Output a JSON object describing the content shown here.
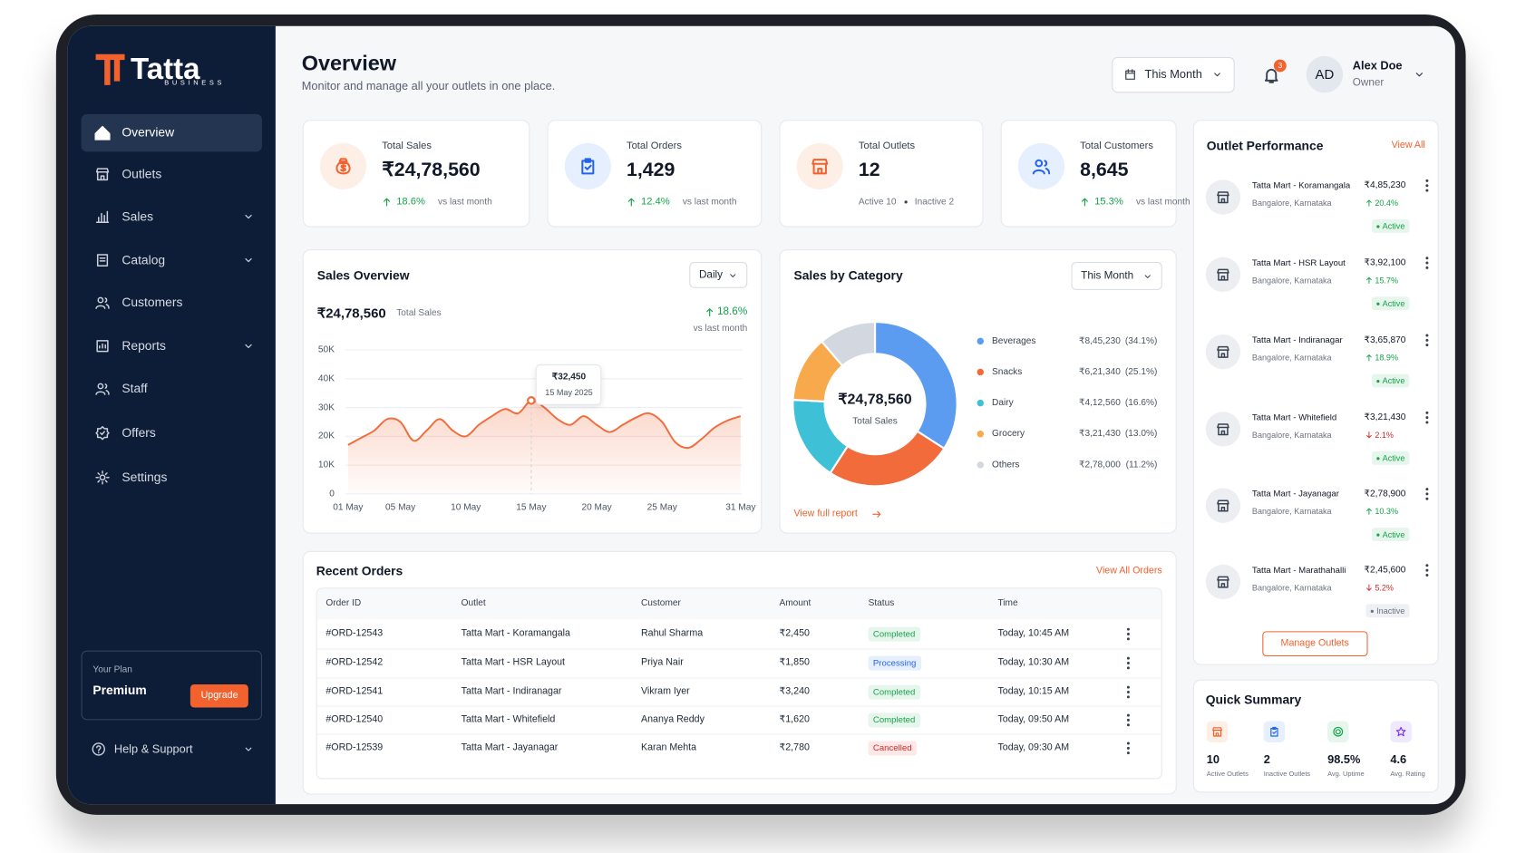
{
  "brand": {
    "name": "Tatta",
    "tagline": "BUSINESS"
  },
  "nav": {
    "items": [
      {
        "label": "Overview",
        "active": true
      },
      {
        "label": "Outlets",
        "icon": "store"
      },
      {
        "label": "Sales",
        "icon": "chart",
        "expandable": true
      },
      {
        "label": "Catalog",
        "icon": "book",
        "expandable": true
      },
      {
        "label": "Customers",
        "icon": "users"
      },
      {
        "label": "Reports",
        "icon": "report",
        "expandable": true
      },
      {
        "label": "Staff",
        "icon": "users"
      },
      {
        "label": "Offers",
        "icon": "tag"
      },
      {
        "label": "Settings",
        "icon": "gear"
      }
    ]
  },
  "plan": {
    "label": "Your Plan",
    "name": "Premium",
    "action": "Upgrade"
  },
  "help": "Help & Support",
  "header": {
    "title": "Overview",
    "subtitle": "Monitor and manage all your outlets in one place.",
    "period": "This Month",
    "notifications": 3,
    "user": {
      "initials": "AD",
      "name": "Alex Doe",
      "role": "Owner"
    }
  },
  "kpis": [
    {
      "label": "Total Sales",
      "value": "₹24,78,560",
      "change": "18.6%",
      "trend": "up",
      "note": "vs last month",
      "tone": "orange",
      "icon": "bag"
    },
    {
      "label": "Total Orders",
      "value": "1,429",
      "change": "12.4%",
      "trend": "up",
      "note": "vs last month",
      "tone": "blue",
      "icon": "clip"
    },
    {
      "label": "Total Outlets",
      "value": 12,
      "details": [
        "Active 10",
        "Inactive 2"
      ],
      "tone": "orange",
      "icon": "store"
    },
    {
      "label": "Total Customers",
      "value": "8,645",
      "change": "15.3%",
      "trend": "up",
      "note": "vs last month",
      "tone": "blue",
      "icon": "users"
    }
  ],
  "sales_overview": {
    "title": "Sales Overview",
    "period": "Daily",
    "total": "₹24,78,560",
    "total_label": "Total Sales",
    "change": "18.6%",
    "trend": "up",
    "change_note": "vs last month"
  },
  "sales_by_category": {
    "title": "Sales by Category",
    "period": "This Month",
    "link": "View full report"
  },
  "chart_data": [
    {
      "type": "line",
      "color": "#f26b3a",
      "x": [
        1,
        2,
        3,
        4,
        5,
        6,
        7,
        8,
        9,
        10,
        11,
        12,
        13,
        14,
        15,
        16,
        17,
        18,
        19,
        20,
        21,
        22,
        23,
        24,
        25,
        26,
        27,
        28,
        29,
        30,
        31
      ],
      "values": [
        17000,
        19500,
        22000,
        26000,
        25000,
        18500,
        22000,
        26000,
        22000,
        20000,
        24000,
        27000,
        29500,
        28000,
        32450,
        30000,
        26000,
        24000,
        27000,
        24000,
        21500,
        24000,
        26500,
        28000,
        25000,
        18000,
        16000,
        19000,
        23000,
        25500,
        27000
      ],
      "xlim": [
        1,
        31
      ],
      "xticks": [
        {
          "value": 1,
          "label": "01 May"
        },
        {
          "value": 5,
          "label": "05 May"
        },
        {
          "value": 10,
          "label": "10 May"
        },
        {
          "value": 15,
          "label": "15 May"
        },
        {
          "value": 20,
          "label": "20 May"
        },
        {
          "value": 25,
          "label": "25 May"
        },
        {
          "value": 31,
          "label": "31 May"
        }
      ],
      "ylim": [
        0,
        50000
      ],
      "yticks": [
        0,
        {
          "value": 10000,
          "label": "10K"
        },
        {
          "value": 20000,
          "label": "20K"
        },
        {
          "value": 30000,
          "label": "30K"
        },
        {
          "value": 40000,
          "label": "40K"
        },
        {
          "value": 50000,
          "label": "50K"
        }
      ],
      "grid": true,
      "annotation": {
        "x": 15,
        "value": "₹32,450",
        "date": "15 May 2025"
      }
    },
    {
      "type": "pie",
      "donut": true,
      "center_value": "₹24,78,560",
      "center_label": "Total Sales",
      "categories": [
        "Beverages",
        "Snacks",
        "Dairy",
        "Grocery",
        "Others"
      ],
      "values": [
        845230,
        621340,
        412560,
        321430,
        278000
      ],
      "value_labels": [
        "₹8,45,230",
        "₹6,21,340",
        "₹4,12,560",
        "₹3,21,430",
        "₹2,78,000"
      ],
      "percent_labels": [
        "(34.1%)",
        "(25.1%)",
        "(16.6%)",
        "(13.0%)",
        "(11.2%)"
      ],
      "colors": [
        "#5b9cf0",
        "#f26b3a",
        "#3ec1d6",
        "#f7a94b",
        "#d3d7e0"
      ]
    }
  ],
  "orders": {
    "title": "Recent Orders",
    "link": "View All Orders",
    "columns": [
      "Order ID",
      "Outlet",
      "Customer",
      "Amount",
      "Status",
      "Time"
    ],
    "rows": [
      [
        "#ORD-12543",
        "Tatta Mart - Koramangala",
        "Rahul Sharma",
        "₹2,450",
        {
          "text": "Completed",
          "tone": "green"
        },
        "Today, 10:45 AM"
      ],
      [
        "#ORD-12542",
        "Tatta Mart - HSR Layout",
        "Priya Nair",
        "₹1,850",
        {
          "text": "Processing",
          "tone": "blue"
        },
        "Today, 10:30 AM"
      ],
      [
        "#ORD-12541",
        "Tatta Mart - Indiranagar",
        "Vikram Iyer",
        "₹3,240",
        {
          "text": "Completed",
          "tone": "green"
        },
        "Today, 10:15 AM"
      ],
      [
        "#ORD-12540",
        "Tatta Mart - Whitefield",
        "Ananya Reddy",
        "₹1,620",
        {
          "text": "Completed",
          "tone": "green"
        },
        "Today, 09:50 AM"
      ],
      [
        "#ORD-12539",
        "Tatta Mart - Jayanagar",
        "Karan Mehta",
        "₹2,780",
        {
          "text": "Cancelled",
          "tone": "red"
        },
        "Today, 09:30 AM"
      ]
    ]
  },
  "outlets": {
    "title": "Outlet Performance",
    "link": "View All",
    "action": "Manage Outlets",
    "items": [
      {
        "name": "Tatta Mart - Koramangala",
        "location": "Bangalore, Karnataka",
        "sales": "₹4,85,230",
        "change": "20.4%",
        "trend": "up",
        "status": "Active",
        "tone": "green"
      },
      {
        "name": "Tatta Mart - HSR Layout",
        "location": "Bangalore, Karnataka",
        "sales": "₹3,92,100",
        "change": "15.7%",
        "trend": "up",
        "status": "Active",
        "tone": "green"
      },
      {
        "name": "Tatta Mart - Indiranagar",
        "location": "Bangalore, Karnataka",
        "sales": "₹3,65,870",
        "change": "18.9%",
        "trend": "up",
        "status": "Active",
        "tone": "green"
      },
      {
        "name": "Tatta Mart - Whitefield",
        "location": "Bangalore, Karnataka",
        "sales": "₹3,21,430",
        "change": "2.1%",
        "trend": "down",
        "status": "Active",
        "tone": "green"
      },
      {
        "name": "Tatta Mart - Jayanagar",
        "location": "Bangalore, Karnataka",
        "sales": "₹2,78,900",
        "change": "10.3%",
        "trend": "up",
        "status": "Active",
        "tone": "green"
      },
      {
        "name": "Tatta Mart - Marathahalli",
        "location": "Bangalore, Karnataka",
        "sales": "₹2,45,600",
        "change": "5.2%",
        "trend": "down",
        "status": "Inactive",
        "tone": "grey"
      }
    ]
  },
  "summary": {
    "title": "Quick Summary",
    "items": [
      {
        "value": 10,
        "label": "Active Outlets",
        "tone": "orange",
        "icon": "store"
      },
      {
        "value": 2,
        "label": "Inactive Outlets",
        "tone": "blue",
        "icon": "clip"
      },
      {
        "value": "98.5%",
        "label": "Avg. Uptime",
        "tone": "green",
        "icon": "uptime"
      },
      {
        "value": 4.6,
        "label": "Avg. Rating",
        "tone": "purple",
        "icon": "star"
      }
    ]
  }
}
